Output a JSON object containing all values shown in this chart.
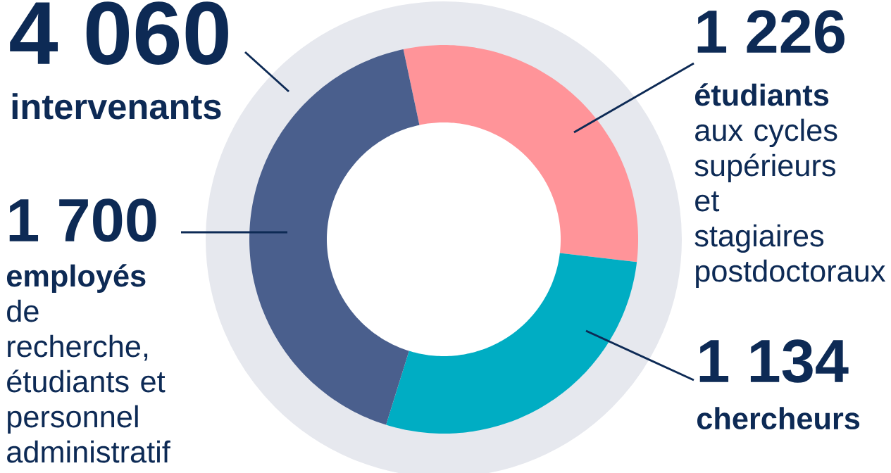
{
  "chart_data": {
    "type": "donut",
    "title": "4 060",
    "subtitle": "intervenants",
    "categories": [
      "**étudiants** aux cycles supérieurs et stagiaires postdoctoraux",
      "**chercheurs**",
      "**employés** de recherche, étudiants et personnel administratif"
    ],
    "values": [
      1226,
      1134,
      1700
    ],
    "value_labels": [
      "1 226",
      "1 134",
      "1 700"
    ],
    "colors": [
      "#ff9499",
      "#00adc3",
      "#4a5f8d"
    ]
  }
}
